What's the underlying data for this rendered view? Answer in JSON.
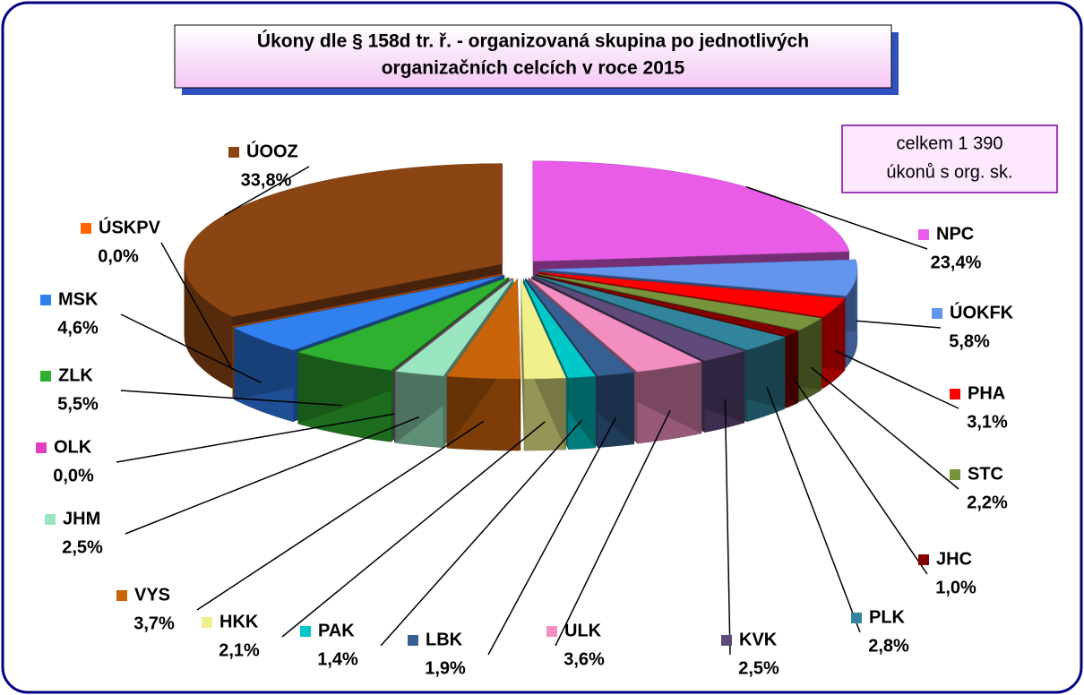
{
  "chart_data": {
    "type": "pie",
    "title": [
      "Úkony dle § 158d tr. ř. - organizovaná skupina po jednotlivých",
      "organizačních celcích v roce 2015"
    ],
    "annotation": [
      "celkem 1 390",
      "úkonů s org. sk."
    ],
    "categories": [
      "NPC",
      "ÚOKFK",
      "PHA",
      "STC",
      "JHC",
      "PLK",
      "KVK",
      "ULK",
      "LBK",
      "PAK",
      "HKK",
      "VYS",
      "JHM",
      "OLK",
      "ZLK",
      "MSK",
      "ÚSKPV",
      "ÚOOZ"
    ],
    "values": [
      23.4,
      5.8,
      3.1,
      2.2,
      1.0,
      2.8,
      2.5,
      3.6,
      1.9,
      1.4,
      2.1,
      3.7,
      2.5,
      0.0,
      5.5,
      4.6,
      0.0,
      33.8
    ],
    "value_labels": [
      "23,4%",
      "5,8%",
      "3,1%",
      "2,2%",
      "1,0%",
      "2,8%",
      "2,5%",
      "3,6%",
      "1,9%",
      "1,4%",
      "2,1%",
      "3,7%",
      "2,5%",
      "0,0%",
      "5,5%",
      "4,6%",
      "0,0%",
      "33,8%"
    ],
    "colors": [
      "#e85ce8",
      "#6495ed",
      "#ff0000",
      "#77933c",
      "#800000",
      "#31849b",
      "#604a7b",
      "#f28fc0",
      "#366092",
      "#00c8c8",
      "#f0f08c",
      "#c8640a",
      "#99e6c0",
      "#e040c0",
      "#30b030",
      "#3080f0",
      "#ff6600",
      "#8b4513"
    ]
  }
}
